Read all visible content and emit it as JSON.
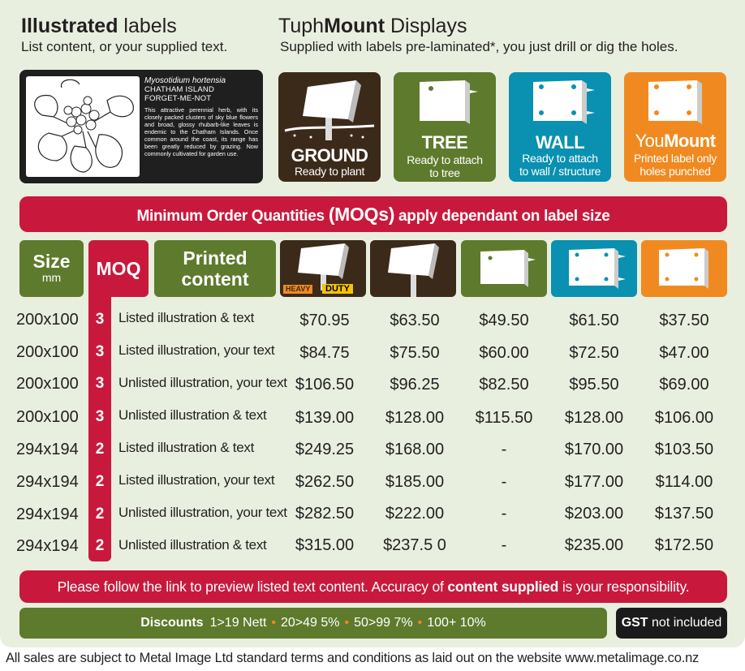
{
  "header": {
    "illustrated_bold": "Illustrated",
    "illustrated_rest": " labels",
    "illustrated_sub": "List content, or your supplied text.",
    "tuph_prefix": "Tuph",
    "tuph_bold": "Mount",
    "tuph_rest": " Displays",
    "tuph_sub": "Supplied with labels pre-laminated*, you just drill or dig the holes."
  },
  "label_card": {
    "species": "Myosotidium hortensia",
    "island": "CHATHAM ISLAND",
    "common": "FORGET-ME-NOT",
    "description": "This attractive perennial herb, with its closely packed clusters of sky blue flowers and broad, glossy rhubarb-like leaves is endemic to the Chatham Islands. Once common around the coast, its range has been greatly reduced by grazing. Now commonly cultivated for garden use."
  },
  "mounts": {
    "ground": {
      "title": "GROUND",
      "subtitle": "Ready to plant",
      "color": "#3b2a1a"
    },
    "tree": {
      "title": "TREE",
      "line1": "Ready to attach",
      "line2": "to tree",
      "color": "#5e7a2c"
    },
    "wall": {
      "title": "WALL",
      "line1": "Ready to attach",
      "line2": "to wall / structure",
      "color": "#0a90b0"
    },
    "youmount": {
      "title_prefix": "You",
      "title_bold": "Mount",
      "line1": "Printed label only",
      "line2": "holes punched",
      "color": "#f08a20"
    }
  },
  "moq_banner": {
    "before": "Minimum Order Quantities ",
    "bold": "(MOQs)",
    "after": " apply dependant on label size",
    "color": "#c8193c"
  },
  "table_header": {
    "size": "Size",
    "size_unit": "mm",
    "moq": "MOQ",
    "printed_line1": "Printed",
    "printed_line2": "content",
    "heavy": "HEAVY",
    "duty": "DUTY"
  },
  "rows": [
    {
      "size": "200x100",
      "moq": "3",
      "content": "Listed illustration & text",
      "prices": [
        "$70.95",
        "$63.50",
        "$49.50",
        "$61.50",
        "$37.50"
      ]
    },
    {
      "size": "200x100",
      "moq": "3",
      "content": "Listed illustration, your text",
      "prices": [
        "$84.75",
        "$75.50",
        "$60.00",
        "$72.50",
        "$47.00"
      ]
    },
    {
      "size": "200x100",
      "moq": "3",
      "content": "Unlisted illustration, your text",
      "prices": [
        "$106.50",
        "$96.25",
        "$82.50",
        "$95.50",
        "$69.00"
      ]
    },
    {
      "size": "200x100",
      "moq": "3",
      "content": "Unlisted illustration & text",
      "prices": [
        "$139.00",
        "$128.00",
        "$115.50",
        "$128.00",
        "$106.00"
      ]
    },
    {
      "size": "294x194",
      "moq": "2",
      "content": "Listed illustration & text",
      "prices": [
        "$249.25",
        "$168.00",
        "-",
        "$170.00",
        "$103.50"
      ]
    },
    {
      "size": "294x194",
      "moq": "2",
      "content": "Listed illustration, your text",
      "prices": [
        "$262.50",
        "$185.00",
        "-",
        "$177.00",
        "$114.00"
      ]
    },
    {
      "size": "294x194",
      "moq": "2",
      "content": "Unlisted illustration, your text",
      "prices": [
        "$282.50",
        "$222.00",
        "-",
        "$203.00",
        "$137.50"
      ]
    },
    {
      "size": "294x194",
      "moq": "2",
      "content": "Unlisted illustration & text",
      "prices": [
        "$315.00",
        "$237.5 0",
        "-",
        "$235.00",
        "$172.50"
      ]
    }
  ],
  "notice": {
    "before": "Please follow the link to preview listed text content. Accuracy of ",
    "bold": "content supplied",
    "after": " is your responsibility."
  },
  "discounts": {
    "label": "Discounts",
    "tiers": [
      "1>19 Nett",
      "20>49 5%",
      "50>99 7%",
      "100+ 10%"
    ]
  },
  "gst": {
    "bold": "GST",
    "rest": " not included"
  },
  "terms": "All sales are subject to Metal Image Ltd standard terms and conditions as laid out on the website www.metalimage.co.nz"
}
